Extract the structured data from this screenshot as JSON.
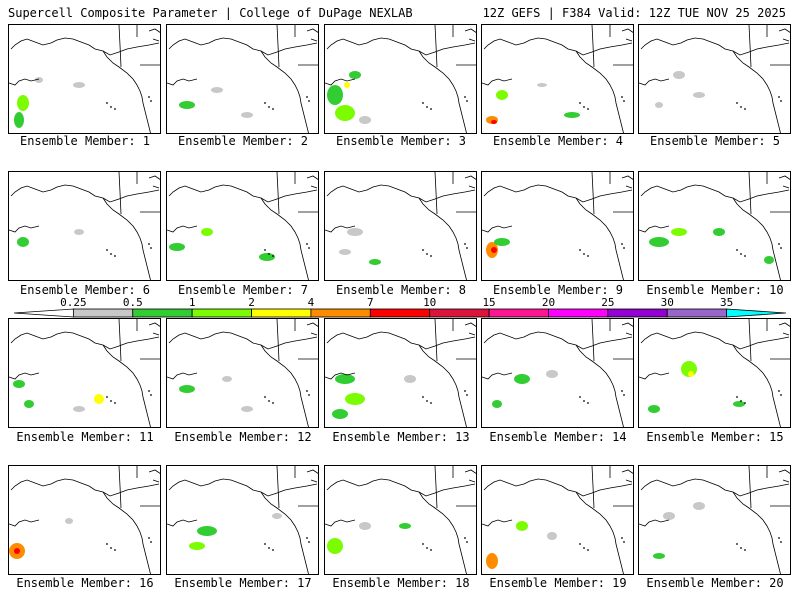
{
  "header": {
    "left_title": "Supercell Composite Parameter | College of DuPage NEXLAB",
    "right_title": "12Z GEFS | F384 Valid: 12Z TUE NOV 25 2025"
  },
  "member_label_prefix": "Ensemble Member:",
  "members": [
    {
      "number": "1",
      "label": "Ensemble Member: 1"
    },
    {
      "number": "2",
      "label": "Ensemble Member: 2"
    },
    {
      "number": "3",
      "label": "Ensemble Member: 3"
    },
    {
      "number": "4",
      "label": "Ensemble Member: 4"
    },
    {
      "number": "5",
      "label": "Ensemble Member: 5"
    },
    {
      "number": "6",
      "label": "Ensemble Member: 6"
    },
    {
      "number": "7",
      "label": "Ensemble Member: 7"
    },
    {
      "number": "8",
      "label": "Ensemble Member: 8"
    },
    {
      "number": "9",
      "label": "Ensemble Member: 9"
    },
    {
      "number": "10",
      "label": "Ensemble Member: 10"
    },
    {
      "number": "11",
      "label": "Ensemble Member: 11"
    },
    {
      "number": "12",
      "label": "Ensemble Member: 12"
    },
    {
      "number": "13",
      "label": "Ensemble Member: 13"
    },
    {
      "number": "14",
      "label": "Ensemble Member: 14"
    },
    {
      "number": "15",
      "label": "Ensemble Member: 15"
    },
    {
      "number": "16",
      "label": "Ensemble Member: 16"
    },
    {
      "number": "17",
      "label": "Ensemble Member: 17"
    },
    {
      "number": "18",
      "label": "Ensemble Member: 18"
    },
    {
      "number": "19",
      "label": "Ensemble Member: 19"
    },
    {
      "number": "20",
      "label": "Ensemble Member: 20"
    }
  ],
  "colorbar": {
    "ticks": [
      "0.25",
      "0.5",
      "1",
      "2",
      "4",
      "7",
      "10",
      "15",
      "20",
      "25",
      "30",
      "35"
    ],
    "colors": [
      "#c8c8c8",
      "#32cd32",
      "#7cfc00",
      "#ffff00",
      "#ff8c00",
      "#ff0000",
      "#dc143c",
      "#ff1493",
      "#ff00ff",
      "#9400d3",
      "#9966cc",
      "#00ffff"
    ]
  }
}
